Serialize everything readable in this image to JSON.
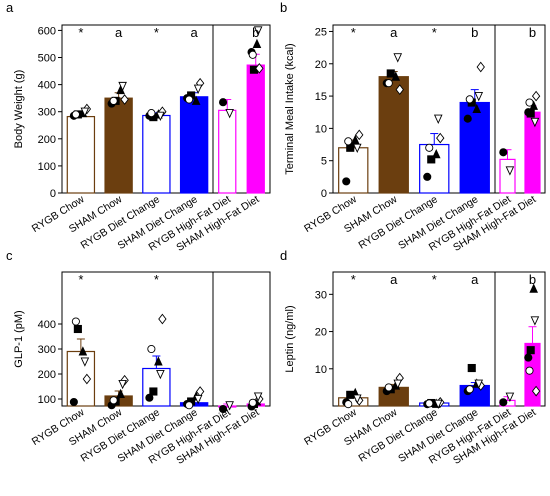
{
  "chart_data": [
    {
      "type": "bar",
      "panel": "a",
      "ylabel": "Body Weight (g)",
      "categories": [
        "RYGB Chow",
        "SHAM Chow",
        "RYGB Diet Change",
        "SHAM Diet Change",
        "RYGB High-Fat Diet",
        "SHAM High-Fat Diet"
      ],
      "values": [
        282,
        350,
        286,
        355,
        305,
        472
      ],
      "errors": [
        12,
        20,
        10,
        15,
        40,
        40
      ],
      "colors": [
        "#6b3e0f",
        "#6b3e0f",
        "#0000ff",
        "#0000ff",
        "#ff00ff",
        "#ff00ff"
      ],
      "filled": [
        false,
        true,
        false,
        true,
        false,
        true
      ],
      "annotations": [
        "*",
        "a",
        "*",
        "a",
        null,
        "b"
      ],
      "marker_shapes": [
        "circle",
        "square",
        "triangle",
        "diamond-open",
        "circle-open",
        "triangle-down-open"
      ],
      "points": [
        [
          285,
          290,
          295,
          310,
          290,
          300
        ],
        [
          330,
          340,
          380,
          345,
          340,
          395
        ],
        [
          285,
          280,
          290,
          300,
          295,
          285
        ],
        [
          350,
          360,
          340,
          405,
          345,
          385
        ],
        [
          335,
          null,
          null,
          null,
          null,
          295
        ],
        [
          520,
          455,
          550,
          460,
          510,
          600
        ]
      ],
      "ylim": [
        0,
        620
      ],
      "yticks": [
        0,
        100,
        200,
        300,
        400,
        500,
        600
      ]
    },
    {
      "type": "bar",
      "panel": "b",
      "ylabel": "Terminal Meal Intake (kcal)",
      "categories": [
        "RYGB Chow",
        "SHAM Chow",
        "RYGB Diet Change",
        "SHAM Diet Change",
        "RYGB High-Fat Diet",
        "SHAM High-Fat Diet"
      ],
      "values": [
        7,
        18,
        7.5,
        14,
        5.2,
        12.5
      ],
      "errors": [
        1.2,
        0.8,
        1.7,
        2,
        1.5,
        1
      ],
      "colors": [
        "#6b3e0f",
        "#6b3e0f",
        "#0000ff",
        "#0000ff",
        "#ff00ff",
        "#ff00ff"
      ],
      "filled": [
        false,
        true,
        false,
        true,
        false,
        true
      ],
      "annotations": [
        "*",
        "a",
        "*",
        "b",
        null,
        "b"
      ],
      "marker_shapes": [
        "circle",
        "square",
        "triangle",
        "diamond-open",
        "circle-open",
        "triangle-down-open"
      ],
      "points": [
        [
          1.8,
          7,
          8.2,
          9,
          8,
          7
        ],
        [
          17,
          18.5,
          18,
          16,
          17,
          21
        ],
        [
          2.5,
          5.2,
          6,
          8.5,
          7,
          11.5
        ],
        [
          11.5,
          14,
          13,
          19.5,
          14.5,
          15
        ],
        [
          6.3,
          null,
          null,
          null,
          null,
          3.5
        ],
        [
          12.5,
          12.3,
          13.5,
          15,
          14,
          11
        ]
      ],
      "ylim": [
        0,
        26
      ],
      "yticks": [
        0,
        5,
        10,
        15,
        20,
        25
      ]
    },
    {
      "type": "bar",
      "panel": "c",
      "ylabel": "GLP-1 (pM)",
      "categories": [
        "RYGB Chow",
        "SHAM Chow",
        "RYGB Diet Change",
        "SHAM Diet Change",
        "RYGB High-Fat Diet",
        "SHAM High-Fat Diet"
      ],
      "values": [
        290,
        112,
        222,
        85,
        68,
        80
      ],
      "errors": [
        50,
        20,
        50,
        12,
        12,
        12
      ],
      "colors": [
        "#6b3e0f",
        "#6b3e0f",
        "#0000ff",
        "#0000ff",
        "#ff00ff",
        "#ff00ff"
      ],
      "filled": [
        false,
        true,
        false,
        true,
        false,
        true
      ],
      "annotations": [
        "*",
        null,
        "*",
        null,
        null,
        null
      ],
      "marker_shapes": [
        "circle",
        "square",
        "triangle",
        "diamond-open",
        "circle-open",
        "triangle-down-open"
      ],
      "points": [
        [
          88,
          380,
          290,
          180,
          410,
          250
        ],
        [
          75,
          90,
          120,
          175,
          95,
          160
        ],
        [
          105,
          130,
          250,
          420,
          300,
          200
        ],
        [
          80,
          90,
          110,
          130,
          75,
          100
        ],
        [
          60,
          null,
          null,
          null,
          null,
          75
        ],
        [
          70,
          80,
          90,
          100,
          85,
          110
        ]
      ],
      "ylim": [
        72,
        608
      ],
      "yticks": [
        100,
        200,
        300,
        400
      ]
    },
    {
      "type": "bar",
      "panel": "d",
      "ylabel": "Leptin (ng/ml)",
      "categories": [
        "RYGB Chow",
        "SHAM Chow",
        "RYGB Diet Change",
        "SHAM Diet Change",
        "RYGB High-Fat Diet",
        "SHAM High-Fat Diet"
      ],
      "values": [
        2.2,
        5,
        0.8,
        5.5,
        1.5,
        16.8
      ],
      "errors": [
        0.7,
        0.8,
        0.2,
        0.8,
        1,
        4.5
      ],
      "colors": [
        "#6b3e0f",
        "#6b3e0f",
        "#0000ff",
        "#0000ff",
        "#ff00ff",
        "#ff00ff"
      ],
      "filled": [
        false,
        true,
        false,
        true,
        false,
        true
      ],
      "annotations": [
        "*",
        "a",
        "*",
        "a",
        null,
        "b"
      ],
      "marker_shapes": [
        "circle",
        "square",
        "triangle",
        "diamond-open",
        "circle-open",
        "triangle-down-open"
      ],
      "points": [
        [
          1,
          3,
          3.5,
          1.5,
          0.5,
          2
        ],
        [
          4,
          4.5,
          5.5,
          7.5,
          5,
          6
        ],
        [
          0.5,
          0.8,
          0.6,
          1,
          0.7,
          0.6
        ],
        [
          4,
          10.2,
          6,
          5.5,
          4.5,
          6
        ],
        [
          1,
          null,
          null,
          null,
          null,
          2.5
        ],
        [
          13,
          15,
          31.5,
          4,
          9.5,
          23
        ]
      ],
      "ylim": [
        0,
        36
      ],
      "yticks": [
        10,
        20,
        30
      ]
    }
  ]
}
